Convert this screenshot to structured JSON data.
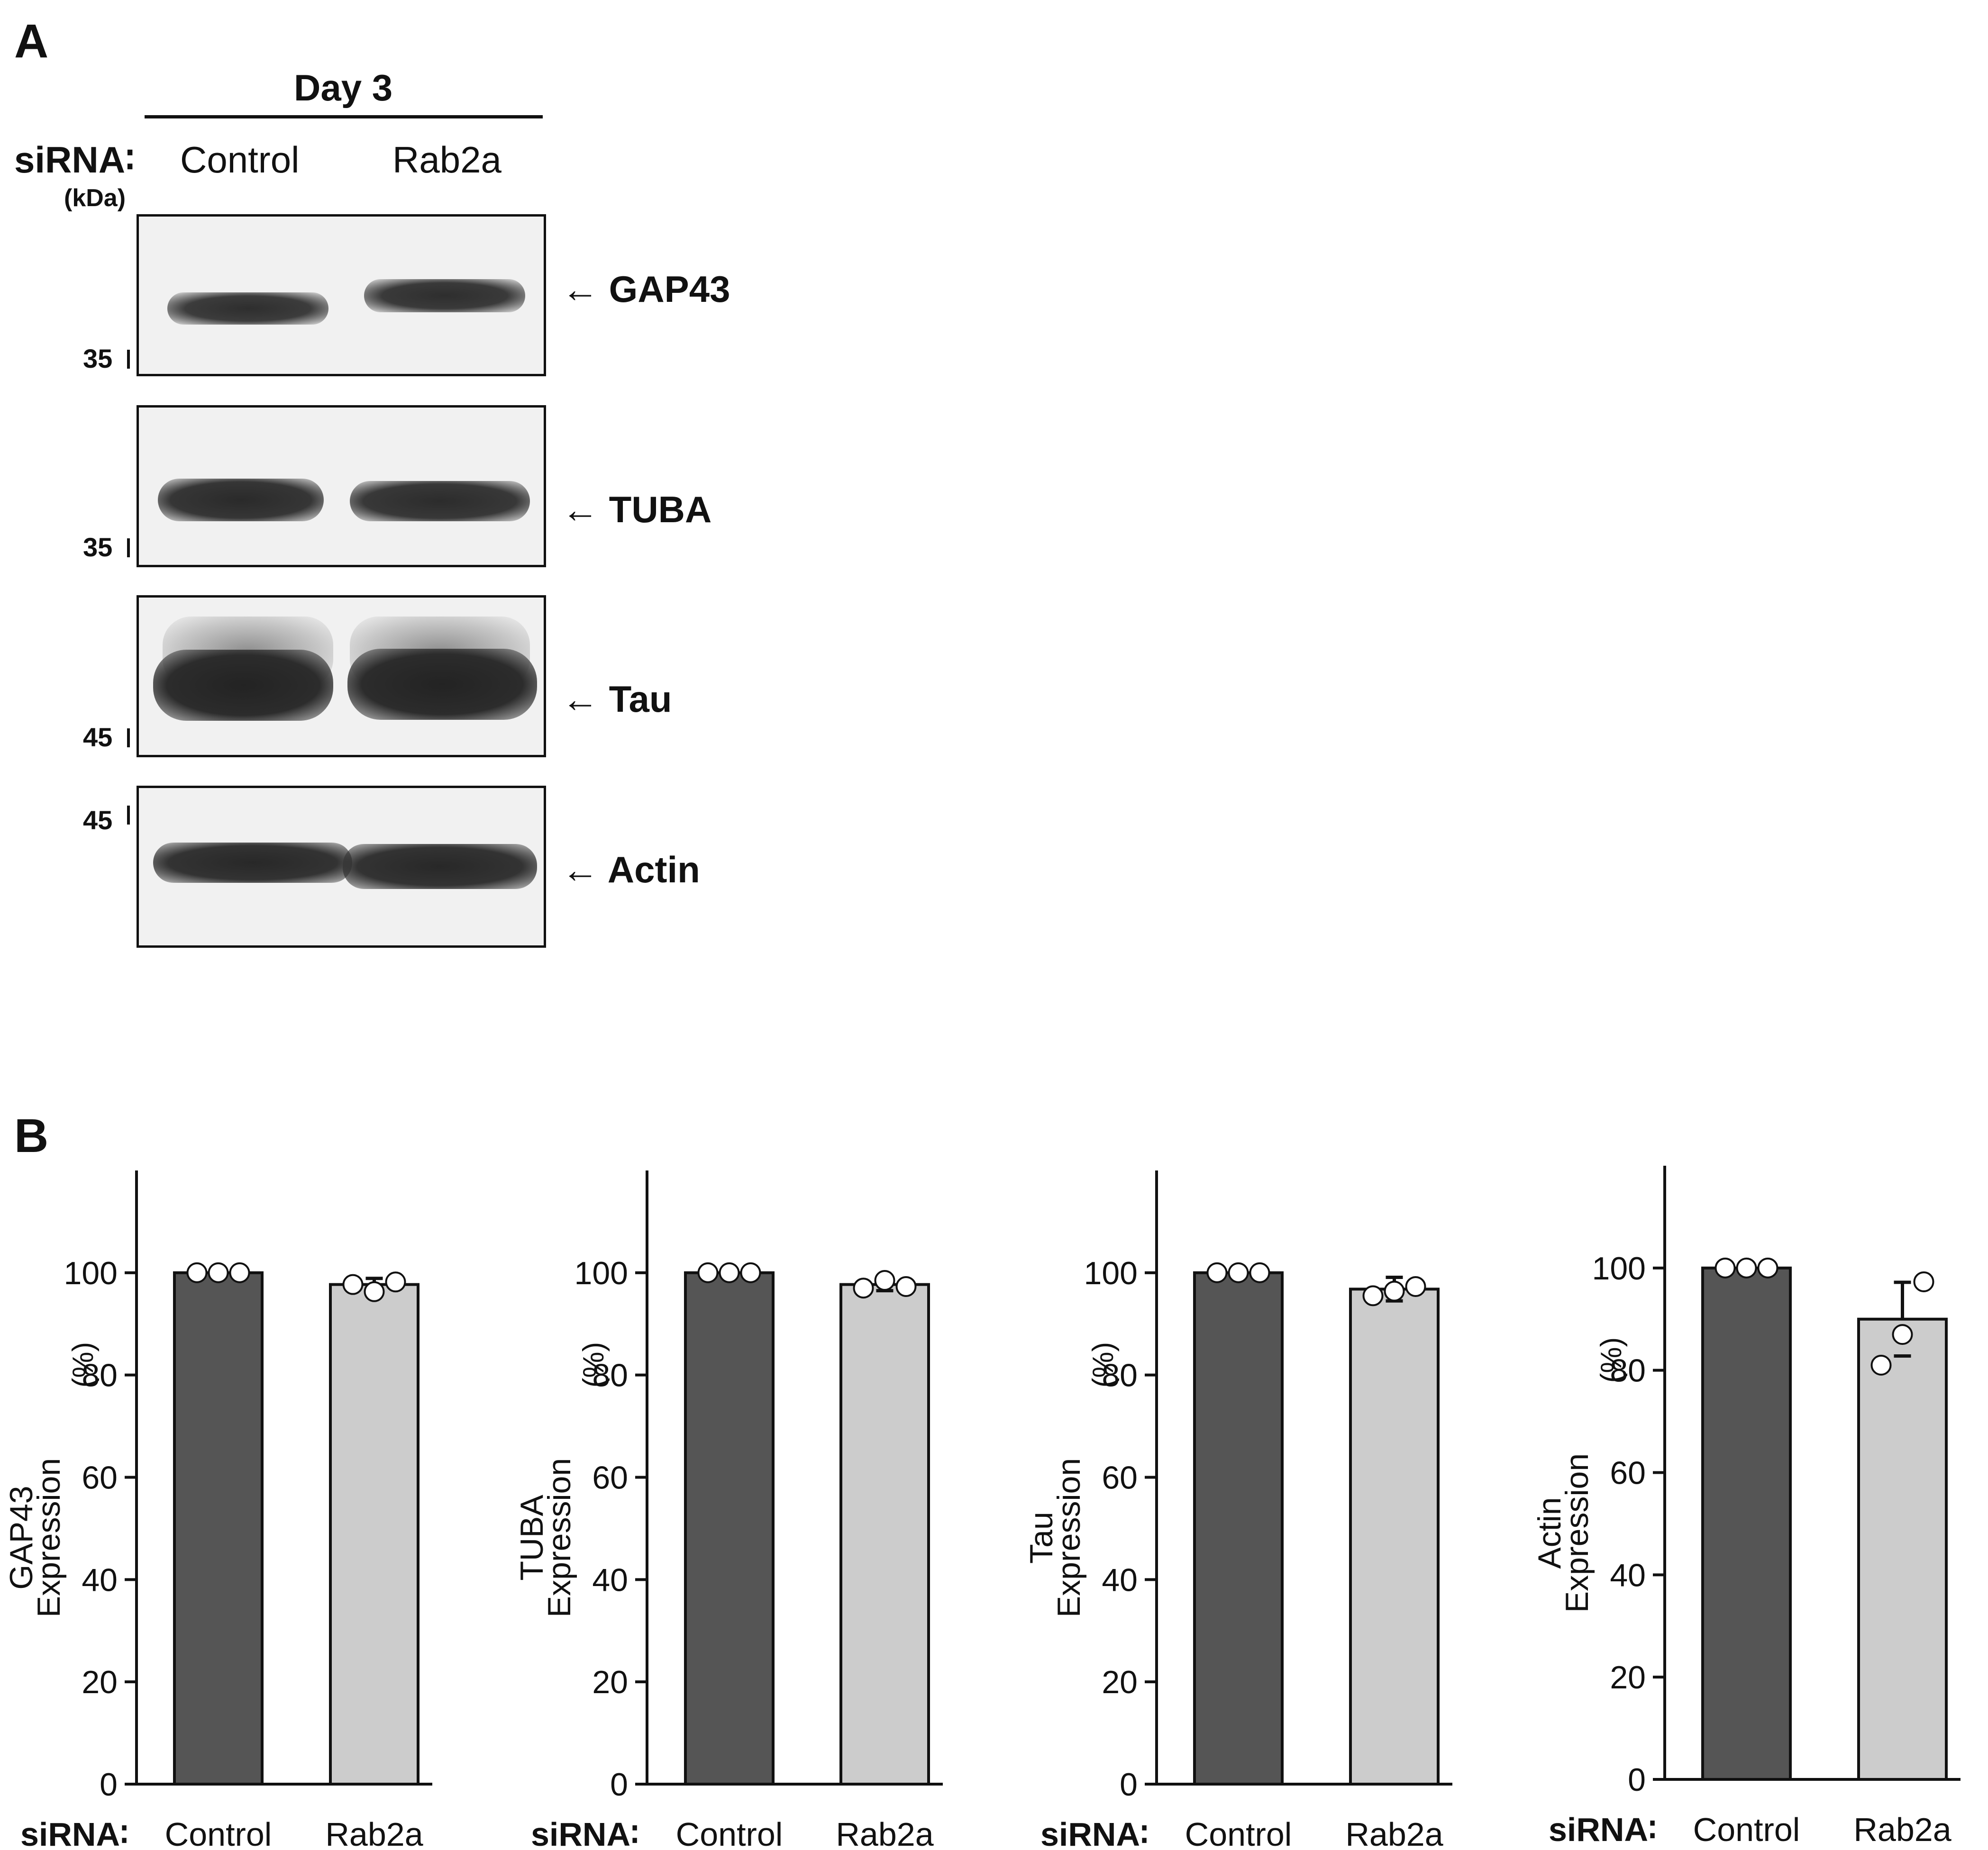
{
  "panel_a": {
    "letter": "A",
    "day_label": "Day 3",
    "sirna_label": "siRNA∶",
    "conditions": [
      "Control",
      "Rab2a"
    ],
    "kda_label": "(kDa)",
    "blots": [
      {
        "protein": "GAP43",
        "marker": "35"
      },
      {
        "protein": "TUBA",
        "marker": "35"
      },
      {
        "protein": "Tau",
        "marker": "45"
      },
      {
        "protein": "Actin",
        "marker": "45"
      }
    ],
    "arrow": "←"
  },
  "panel_b": {
    "letter": "B"
  },
  "colors": {
    "control_bar": "#555555",
    "rab2a_bar": "#cccccc",
    "points": "#ffffff",
    "axis": "#111111"
  },
  "chart_data": [
    {
      "type": "bar",
      "categories": [
        "Control",
        "Rab2a"
      ],
      "values": [
        100,
        97.7
      ],
      "errors": [
        0,
        1.2
      ],
      "points": [
        [
          100,
          100,
          100
        ],
        [
          97.7,
          96.3,
          98.2
        ]
      ],
      "ylabel_lines": [
        "GAP43",
        "Expression"
      ],
      "ylabel_unit": "(%)",
      "xlabel_prefix": "siRNA∶",
      "ylim": [
        0,
        120
      ],
      "yticks": [
        0,
        20,
        40,
        60,
        80,
        100
      ]
    },
    {
      "type": "bar",
      "categories": [
        "Control",
        "Rab2a"
      ],
      "values": [
        100,
        97.7
      ],
      "errors": [
        0,
        1.2
      ],
      "points": [
        [
          100,
          100,
          100
        ],
        [
          97.0,
          98.5,
          97.3
        ]
      ],
      "ylabel_lines": [
        "TUBA",
        "Expression"
      ],
      "ylabel_unit": "(%)",
      "xlabel_prefix": "siRNA∶",
      "ylim": [
        0,
        120
      ],
      "yticks": [
        0,
        20,
        40,
        60,
        80,
        100
      ]
    },
    {
      "type": "bar",
      "categories": [
        "Control",
        "Rab2a"
      ],
      "values": [
        100,
        96.8
      ],
      "errors": [
        0,
        2.3
      ],
      "points": [
        [
          100,
          100,
          100
        ],
        [
          95.5,
          96.4,
          97.3
        ]
      ],
      "ylabel_lines": [
        "Tau",
        "Expression"
      ],
      "ylabel_unit": "(%)",
      "xlabel_prefix": "siRNA∶",
      "ylim": [
        0,
        120
      ],
      "yticks": [
        0,
        20,
        40,
        60,
        80,
        100
      ]
    },
    {
      "type": "bar",
      "categories": [
        "Control",
        "Rab2a"
      ],
      "values": [
        100,
        90
      ],
      "errors": [
        0,
        7.2
      ],
      "points": [
        [
          100,
          100,
          100
        ],
        [
          81,
          87,
          97.3
        ]
      ],
      "ylabel_lines": [
        "Actin",
        "Expression"
      ],
      "ylabel_unit": "(%)",
      "xlabel_prefix": "siRNA∶",
      "ylim": [
        0,
        120
      ],
      "yticks": [
        0,
        20,
        40,
        60,
        80,
        100
      ]
    }
  ]
}
